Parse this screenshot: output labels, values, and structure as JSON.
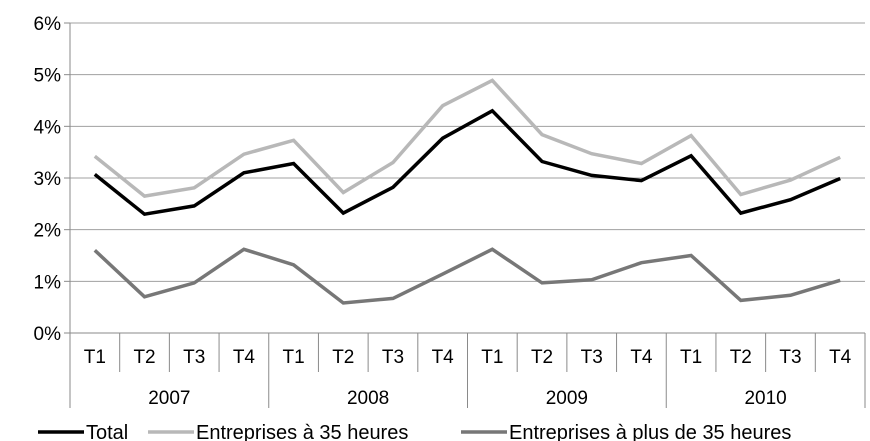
{
  "chart_data": {
    "type": "line",
    "title": "",
    "xlabel": "",
    "ylabel": "",
    "ylim": [
      0,
      6
    ],
    "yticks": [
      "0%",
      "1%",
      "2%",
      "3%",
      "4%",
      "5%",
      "6%"
    ],
    "grid": true,
    "legend_position": "bottom",
    "groups": [
      {
        "label": "2007",
        "quarters": [
          "T1",
          "T2",
          "T3",
          "T4"
        ]
      },
      {
        "label": "2008",
        "quarters": [
          "T1",
          "T2",
          "T3",
          "T4"
        ]
      },
      {
        "label": "2009",
        "quarters": [
          "T1",
          "T2",
          "T3",
          "T4"
        ]
      },
      {
        "label": "2010",
        "quarters": [
          "T1",
          "T2",
          "T3",
          "T4"
        ]
      }
    ],
    "series": [
      {
        "name": "Total",
        "color": "#000000",
        "values": [
          3.07,
          2.3,
          2.46,
          3.1,
          3.28,
          2.32,
          2.82,
          3.77,
          4.3,
          3.32,
          3.05,
          2.95,
          3.43,
          2.32,
          2.58,
          2.99
        ]
      },
      {
        "name": "Entreprises à 35 heures",
        "color": "#b8b8b8",
        "values": [
          3.42,
          2.65,
          2.81,
          3.46,
          3.73,
          2.72,
          3.3,
          4.4,
          4.89,
          3.84,
          3.47,
          3.28,
          3.82,
          2.68,
          2.96,
          3.4
        ]
      },
      {
        "name": "Entreprises à plus de 35 heures",
        "color": "#777777",
        "values": [
          1.6,
          0.7,
          0.97,
          1.62,
          1.32,
          0.58,
          0.67,
          1.14,
          1.62,
          0.97,
          1.03,
          1.36,
          1.5,
          0.63,
          0.73,
          1.02
        ]
      }
    ]
  }
}
